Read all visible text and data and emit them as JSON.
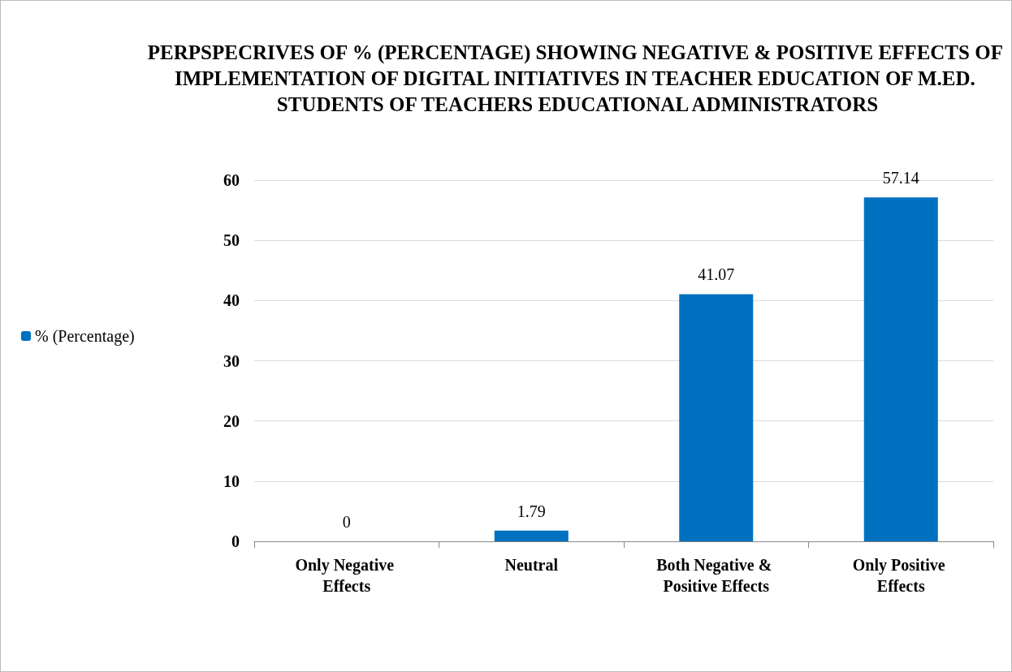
{
  "chart_data": {
    "type": "bar",
    "title": "PERPSPECRIVES OF % (PERCENTAGE) SHOWING NEGATIVE & POSITIVE EFFECTS OF IMPLEMENTATION OF DIGITAL INITIATIVES IN TEACHER EDUCATION OF M.ED. STUDENTS OF TEACHERS EDUCATIONAL ADMINISTRATORS",
    "categories": [
      "Only Negative Effects",
      "Neutral",
      "Both Negative & Positive Effects",
      "Only Positive Effects"
    ],
    "series": [
      {
        "name": "% (Percentage)",
        "color": "#0070c0",
        "values": [
          0,
          1.79,
          41.07,
          57.14
        ]
      }
    ],
    "ylim": [
      0,
      60
    ],
    "yticks": [
      0,
      10,
      20,
      30,
      40,
      50,
      60
    ],
    "grid": "y",
    "legend": "left",
    "data_labels": true
  }
}
